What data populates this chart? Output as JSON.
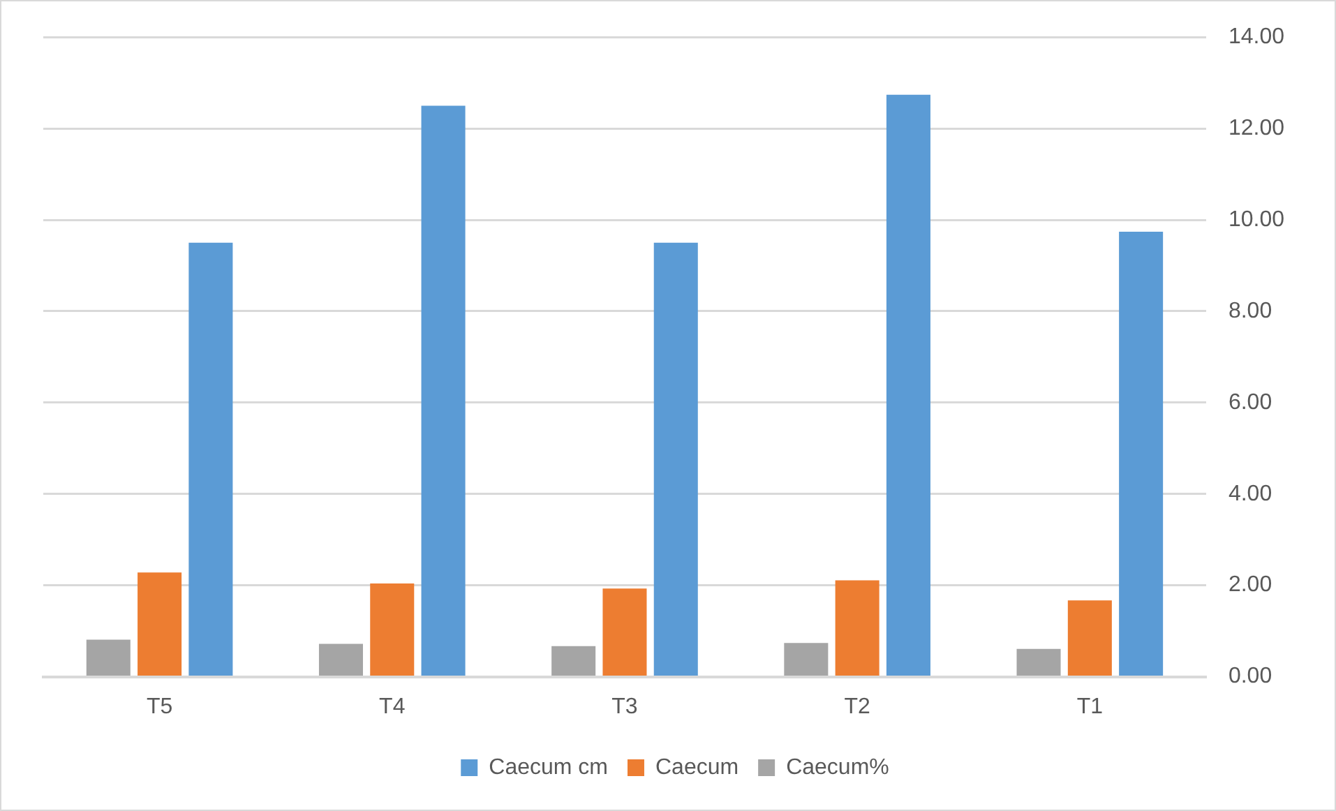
{
  "chart_data": {
    "type": "bar",
    "categories": [
      "T5",
      "T4",
      "T3",
      "T2",
      "T1"
    ],
    "series": [
      {
        "name": "Caecum%",
        "color": "#a5a5a5",
        "values": [
          0.81,
          0.72,
          0.67,
          0.74,
          0.61
        ]
      },
      {
        "name": "Caecum",
        "color": "#ed7d31",
        "values": [
          2.28,
          2.04,
          1.93,
          2.11,
          1.67
        ]
      },
      {
        "name": "Caecum cm",
        "color": "#5b9bd5",
        "values": [
          9.5,
          12.5,
          9.5,
          12.74,
          9.74
        ]
      }
    ],
    "ylim": [
      0,
      14
    ],
    "yticks": [
      {
        "value": 0,
        "label": "0.00"
      },
      {
        "value": 2,
        "label": "2.00"
      },
      {
        "value": 4,
        "label": "4.00"
      },
      {
        "value": 6,
        "label": "6.00"
      },
      {
        "value": 8,
        "label": "8.00"
      },
      {
        "value": 10,
        "label": "10.00"
      },
      {
        "value": 12,
        "label": "12.00"
      },
      {
        "value": 14,
        "label": "14.00"
      }
    ],
    "grid": "y",
    "legend": "bottom"
  }
}
